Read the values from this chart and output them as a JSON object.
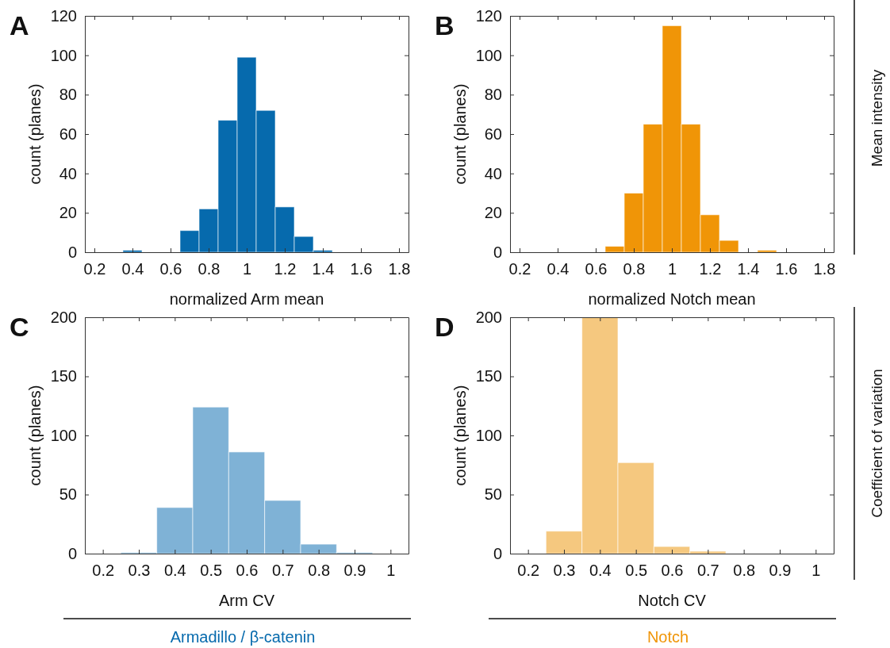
{
  "chart_data": [
    {
      "type": "histogram",
      "title": "A",
      "xlabel": "normalized Arm mean",
      "ylabel": "count (planes)",
      "color": "#066aad",
      "bins": [
        0.35,
        0.45,
        0.55,
        0.65,
        0.75,
        0.85,
        0.95,
        1.05,
        1.15,
        1.25,
        1.35,
        1.45
      ],
      "values": [
        1,
        0,
        0,
        11,
        22,
        67,
        99,
        72,
        23,
        8,
        1
      ],
      "xlim": [
        0.15,
        1.85
      ],
      "xticks": [
        0.2,
        0.4,
        0.6,
        0.8,
        1,
        1.2,
        1.4,
        1.6,
        1.8
      ],
      "ylim": [
        0,
        120
      ],
      "yticks": [
        0,
        20,
        40,
        60,
        80,
        100,
        120
      ]
    },
    {
      "type": "histogram",
      "title": "B",
      "xlabel": "normalized Notch mean",
      "ylabel": "count (planes)",
      "color": "#f09507",
      "bins": [
        0.65,
        0.75,
        0.85,
        0.95,
        1.05,
        1.15,
        1.25,
        1.35,
        1.45,
        1.55
      ],
      "values": [
        3,
        30,
        65,
        115,
        65,
        19,
        6,
        0,
        1
      ],
      "xlim": [
        0.15,
        1.85
      ],
      "xticks": [
        0.2,
        0.4,
        0.6,
        0.8,
        1,
        1.2,
        1.4,
        1.6,
        1.8
      ],
      "ylim": [
        0,
        120
      ],
      "yticks": [
        0,
        20,
        40,
        60,
        80,
        100,
        120
      ],
      "annotations": [
        "Mean intensity"
      ]
    },
    {
      "type": "histogram",
      "title": "C",
      "xlabel": "Arm CV",
      "ylabel": "count (planes)",
      "color": "#7fb2d6",
      "bins": [
        0.25,
        0.35,
        0.45,
        0.55,
        0.65,
        0.75,
        0.85,
        0.95
      ],
      "values": [
        1,
        39,
        124,
        86,
        45,
        8,
        1
      ],
      "xlim": [
        0.15,
        1.05
      ],
      "xticks": [
        0.2,
        0.3,
        0.4,
        0.5,
        0.6,
        0.7,
        0.8,
        0.9,
        1
      ],
      "ylim": [
        0,
        200
      ],
      "yticks": [
        0,
        50,
        100,
        150,
        200
      ],
      "annotations": [
        "Armadillo / β-catenin"
      ]
    },
    {
      "type": "histogram",
      "title": "D",
      "xlabel": "Notch CV",
      "ylabel": "count (planes)",
      "color": "#f5c87f",
      "bins": [
        0.25,
        0.35,
        0.45,
        0.55,
        0.65,
        0.75
      ],
      "values": [
        19,
        200,
        77,
        6,
        2
      ],
      "xlim": [
        0.15,
        1.05
      ],
      "xticks": [
        0.2,
        0.3,
        0.4,
        0.5,
        0.6,
        0.7,
        0.8,
        0.9,
        1
      ],
      "ylim": [
        0,
        200
      ],
      "yticks": [
        0,
        50,
        100,
        150,
        200
      ],
      "annotations": [
        "Coefficient of variation",
        "Notch"
      ]
    }
  ]
}
